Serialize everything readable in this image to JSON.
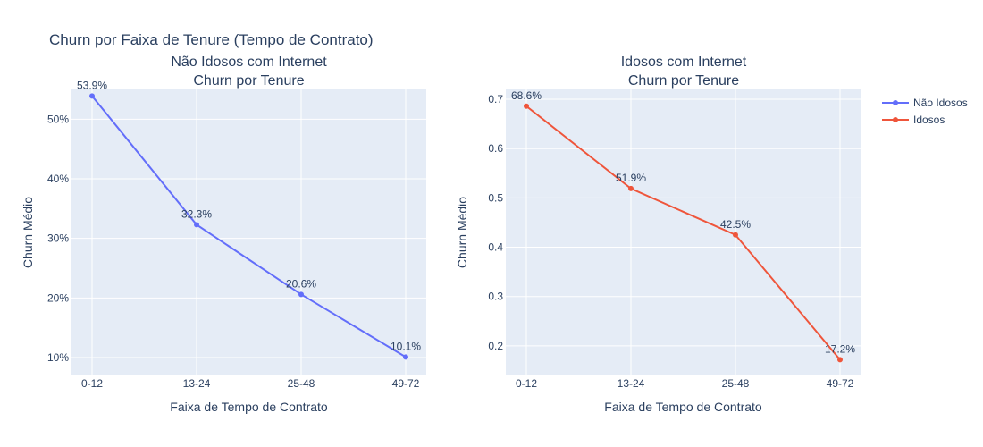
{
  "figure_title": "Churn por Faixa de Tenure (Tempo de Contrato)",
  "chart_data": [
    {
      "type": "line",
      "title": "Não Idosos com Internet",
      "subtitle": "Churn por Tenure",
      "xlabel": "Faixa de Tempo de Contrato",
      "ylabel": "Churn Médio",
      "categories": [
        "0-12",
        "13-24",
        "25-48",
        "49-72"
      ],
      "series": [
        {
          "name": "Não Idosos",
          "color": "#636efa",
          "values": [
            0.539,
            0.323,
            0.206,
            0.101
          ],
          "labels": [
            "53.9%",
            "32.3%",
            "20.6%",
            "10.1%"
          ]
        }
      ],
      "ylim": [
        0.07,
        0.55
      ],
      "yticks": [
        0.1,
        0.2,
        0.3,
        0.4,
        0.5
      ],
      "ytick_labels": [
        "10%",
        "20%",
        "30%",
        "40%",
        "50%"
      ],
      "grid": true
    },
    {
      "type": "line",
      "title": "Idosos com Internet",
      "subtitle": "Churn por Tenure",
      "xlabel": "Faixa de Tempo de Contrato",
      "ylabel": "Churn Médio",
      "categories": [
        "0-12",
        "13-24",
        "25-48",
        "49-72"
      ],
      "series": [
        {
          "name": "Idosos",
          "color": "#ef553b",
          "values": [
            0.686,
            0.519,
            0.425,
            0.172
          ],
          "labels": [
            "68.6%",
            "51.9%",
            "42.5%",
            "17.2%"
          ]
        }
      ],
      "ylim": [
        0.14,
        0.72
      ],
      "yticks": [
        0.2,
        0.3,
        0.4,
        0.5,
        0.6,
        0.7
      ],
      "ytick_labels": [
        "0.2",
        "0.3",
        "0.4",
        "0.5",
        "0.6",
        "0.7"
      ],
      "grid": true
    }
  ],
  "legend": {
    "placement": "top-right",
    "items": [
      {
        "name": "Não Idosos",
        "color": "#636efa"
      },
      {
        "name": "Idosos",
        "color": "#ef553b"
      }
    ]
  }
}
